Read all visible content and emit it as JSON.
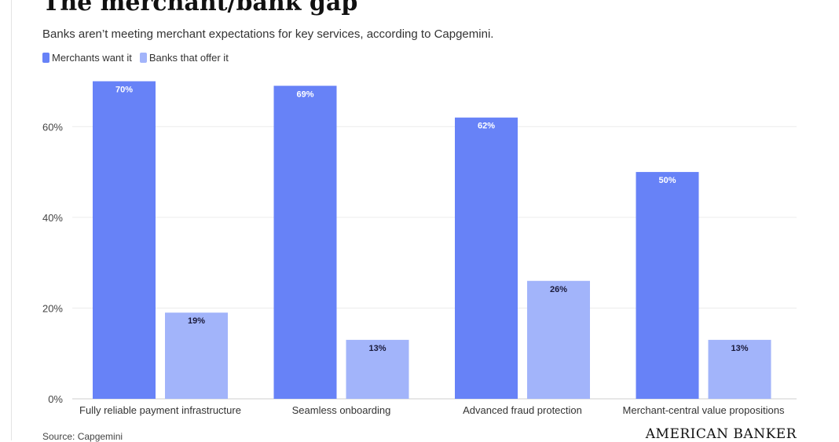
{
  "chart_data": {
    "type": "bar",
    "title": "The merchant/bank gap",
    "subtitle": "Banks aren’t meeting merchant expectations for key services, according to Capgemini.",
    "categories": [
      "Fully reliable payment infrastructure",
      "Seamless onboarding",
      "Advanced fraud protection",
      "Merchant-central value propositions"
    ],
    "series": [
      {
        "name": "Merchants want it",
        "values": [
          70,
          69,
          62,
          50
        ],
        "labels": [
          "70%",
          "69%",
          "62%",
          "50%"
        ],
        "color": "#6782f7"
      },
      {
        "name": "Banks that offer it",
        "values": [
          19,
          13,
          26,
          13
        ],
        "labels": [
          "19%",
          "13%",
          "26%",
          "13%"
        ],
        "color": "#a2b4fa"
      }
    ],
    "yticks": [
      0,
      20,
      40,
      60
    ],
    "ytick_labels": [
      "0%",
      "20%",
      "40%",
      "60%"
    ],
    "ylim": [
      0,
      70
    ],
    "grid": true,
    "legend": "top-left",
    "source": "Source: Capgemini",
    "brand": "AMERICAN BANKER"
  }
}
